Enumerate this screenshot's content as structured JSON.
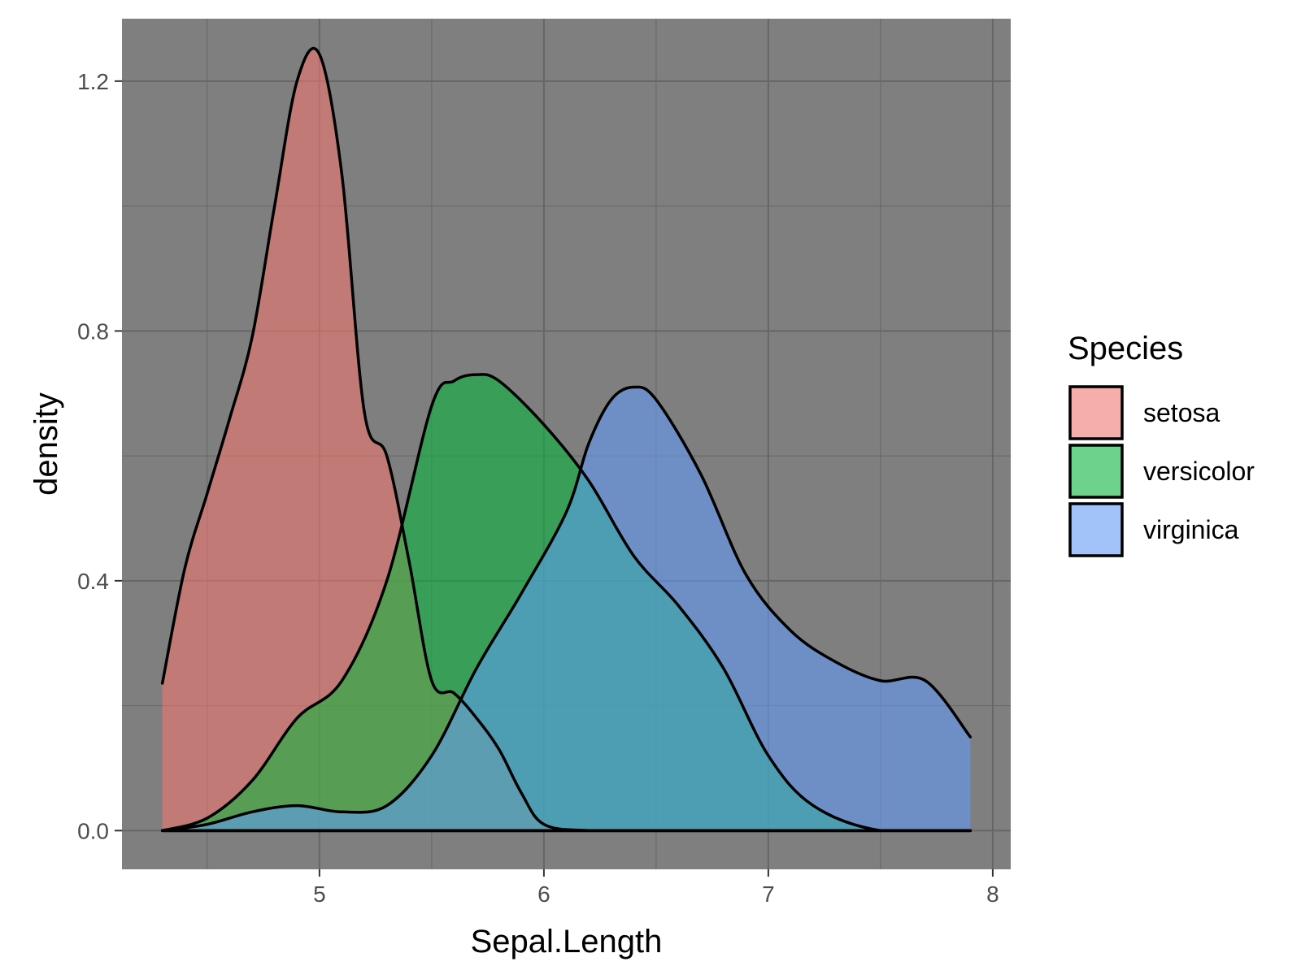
{
  "chart_data": {
    "type": "area",
    "subtype": "density",
    "xlabel": "Sepal.Length",
    "ylabel": "density",
    "xlim": [
      4.12,
      8.08
    ],
    "ylim": [
      -0.062,
      1.3
    ],
    "x_ticks": [
      5,
      6,
      7,
      8
    ],
    "x_tick_labels": [
      "5",
      "6",
      "7",
      "8"
    ],
    "x_minor_ticks": [
      4.5,
      5.5,
      6.5,
      7.5
    ],
    "y_ticks": [
      0,
      0.4,
      0.8,
      1.2
    ],
    "y_tick_labels": [
      "0.0",
      "0.4",
      "0.8",
      "1.2"
    ],
    "y_minor_ticks": [
      0.2,
      0.6,
      1.0
    ],
    "grid": true,
    "panel_background": "#7f7f7f",
    "grid_color": "#666666",
    "outline_color": "#000000",
    "fill_opacity": 0.55,
    "legend": {
      "title": "Species",
      "position": "right"
    },
    "series": [
      {
        "name": "setosa",
        "color": "#F8766D",
        "x": [
          4.3,
          4.4,
          4.5,
          4.6,
          4.7,
          4.8,
          4.9,
          5.0,
          5.1,
          5.2,
          5.3,
          5.4,
          5.5,
          5.6,
          5.7,
          5.8,
          5.9,
          6.0,
          6.2,
          6.5,
          7.0,
          7.5,
          7.9
        ],
        "values": [
          0.236,
          0.42,
          0.54,
          0.66,
          0.79,
          1.0,
          1.2,
          1.243,
          1.05,
          0.67,
          0.6,
          0.43,
          0.24,
          0.22,
          0.18,
          0.13,
          0.06,
          0.01,
          0.0,
          0.0,
          0.0,
          0.0,
          0.0
        ]
      },
      {
        "name": "versicolor",
        "color": "#00BA38",
        "x": [
          4.3,
          4.5,
          4.7,
          4.9,
          5.1,
          5.3,
          5.5,
          5.6,
          5.7,
          5.8,
          6.0,
          6.2,
          6.4,
          6.6,
          6.8,
          7.0,
          7.2,
          7.5,
          7.9
        ],
        "values": [
          0.0,
          0.02,
          0.08,
          0.18,
          0.24,
          0.4,
          0.68,
          0.72,
          0.73,
          0.72,
          0.65,
          0.56,
          0.44,
          0.36,
          0.26,
          0.12,
          0.04,
          0.0,
          0.0
        ]
      },
      {
        "name": "virginica",
        "color": "#619CFF",
        "x": [
          4.3,
          4.5,
          4.7,
          4.9,
          5.1,
          5.3,
          5.5,
          5.7,
          5.9,
          6.1,
          6.2,
          6.3,
          6.4,
          6.5,
          6.7,
          6.9,
          7.1,
          7.3,
          7.5,
          7.7,
          7.9
        ],
        "values": [
          0.0,
          0.01,
          0.03,
          0.04,
          0.03,
          0.04,
          0.12,
          0.26,
          0.38,
          0.51,
          0.62,
          0.69,
          0.71,
          0.69,
          0.57,
          0.41,
          0.32,
          0.27,
          0.24,
          0.24,
          0.15
        ]
      }
    ]
  }
}
